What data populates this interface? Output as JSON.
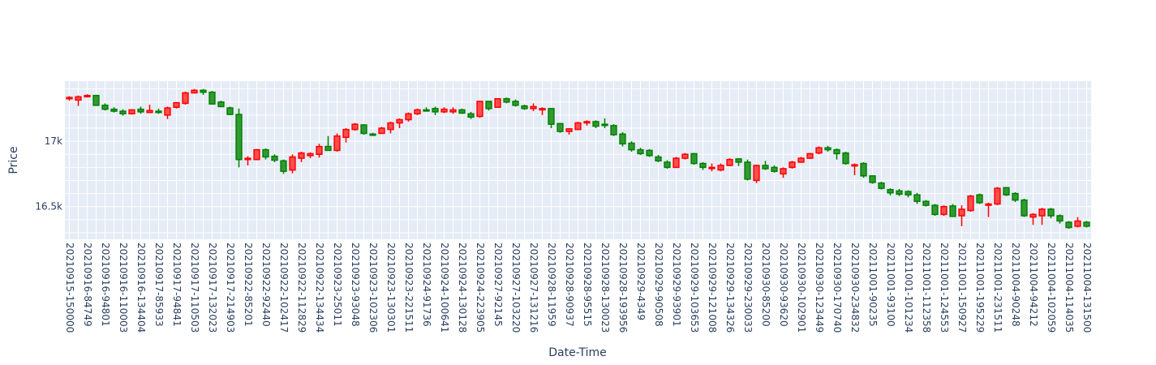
{
  "chart_data": {
    "type": "candlestick",
    "xlabel": "Date-Time",
    "ylabel": "Price",
    "ylim": [
      16250,
      17460
    ],
    "yticks": [
      {
        "value": 17000,
        "label": "17k"
      },
      {
        "value": 16500,
        "label": "16.5k"
      }
    ],
    "colors": {
      "increasing": "#ff0000",
      "decreasing": "#008000",
      "plot_bg": "#e5ecf6",
      "grid": "#ffffff",
      "text": "#2a3f5f"
    },
    "x_tick_labels": [
      "20210915-150000",
      "20210916-84749",
      "20210916-94801",
      "20210916-110003",
      "20210916-134404",
      "20210917-85933",
      "20210917-94841",
      "20210917-110503",
      "20210917-132023",
      "20210917-214903",
      "20210922-85201",
      "20210922-92440",
      "20210922-102417",
      "20210922-112829",
      "20210922-134434",
      "20210923-25011",
      "20210923-93048",
      "20210923-102306",
      "20210923-130301",
      "20210923-221511",
      "20210924-91736",
      "20210924-100641",
      "20210924-130128",
      "20210924-223905",
      "20210927-92145",
      "20210927-103220",
      "20210927-131216",
      "20210928-11959",
      "20210928-90937",
      "20210928-95515",
      "20210928-130023",
      "20210928-193956",
      "20210929-4349",
      "20210929-90508",
      "20210929-93901",
      "20210929-103653",
      "20210929-121008",
      "20210929-134326",
      "20210929-230033",
      "20210930-85200",
      "20210930-93620",
      "20210930-102901",
      "20210930-123449",
      "20210930-170740",
      "20210930-234832",
      "20211001-90235",
      "20211001-93100",
      "20211001-101234",
      "20211001-112358",
      "20211001-124553",
      "20211001-150927",
      "20211001-195229",
      "20211001-231511",
      "20211004-90248",
      "20211004-94212",
      "20211004-102059",
      "20211004-114035",
      "20211004-131500"
    ],
    "candles": [
      {
        "o": 17325,
        "h": 17345,
        "l": 17310,
        "c": 17335
      },
      {
        "o": 17315,
        "h": 17350,
        "l": 17270,
        "c": 17340
      },
      {
        "o": 17340,
        "h": 17360,
        "l": 17335,
        "c": 17350
      },
      {
        "o": 17350,
        "h": 17355,
        "l": 17270,
        "c": 17275
      },
      {
        "o": 17275,
        "h": 17290,
        "l": 17235,
        "c": 17245
      },
      {
        "o": 17245,
        "h": 17260,
        "l": 17220,
        "c": 17230
      },
      {
        "o": 17230,
        "h": 17245,
        "l": 17195,
        "c": 17210
      },
      {
        "o": 17210,
        "h": 17245,
        "l": 17205,
        "c": 17240
      },
      {
        "o": 17245,
        "h": 17265,
        "l": 17210,
        "c": 17225
      },
      {
        "o": 17220,
        "h": 17280,
        "l": 17215,
        "c": 17235
      },
      {
        "o": 17230,
        "h": 17250,
        "l": 17210,
        "c": 17220
      },
      {
        "o": 17200,
        "h": 17265,
        "l": 17170,
        "c": 17255
      },
      {
        "o": 17260,
        "h": 17300,
        "l": 17250,
        "c": 17295
      },
      {
        "o": 17290,
        "h": 17380,
        "l": 17280,
        "c": 17370
      },
      {
        "o": 17370,
        "h": 17400,
        "l": 17365,
        "c": 17390
      },
      {
        "o": 17390,
        "h": 17400,
        "l": 17355,
        "c": 17375
      },
      {
        "o": 17375,
        "h": 17385,
        "l": 17280,
        "c": 17285
      },
      {
        "o": 17300,
        "h": 17310,
        "l": 17260,
        "c": 17265
      },
      {
        "o": 17255,
        "h": 17265,
        "l": 17200,
        "c": 17205
      },
      {
        "o": 17205,
        "h": 17250,
        "l": 16800,
        "c": 16860
      },
      {
        "o": 16860,
        "h": 16885,
        "l": 16815,
        "c": 16870
      },
      {
        "o": 16860,
        "h": 16940,
        "l": 16855,
        "c": 16935
      },
      {
        "o": 16935,
        "h": 16945,
        "l": 16860,
        "c": 16880
      },
      {
        "o": 16885,
        "h": 16900,
        "l": 16840,
        "c": 16855
      },
      {
        "o": 16850,
        "h": 16860,
        "l": 16750,
        "c": 16770
      },
      {
        "o": 16780,
        "h": 16900,
        "l": 16755,
        "c": 16880
      },
      {
        "o": 16870,
        "h": 16920,
        "l": 16840,
        "c": 16910
      },
      {
        "o": 16890,
        "h": 16915,
        "l": 16870,
        "c": 16905
      },
      {
        "o": 16900,
        "h": 16980,
        "l": 16875,
        "c": 16960
      },
      {
        "o": 16960,
        "h": 17040,
        "l": 16930,
        "c": 16930
      },
      {
        "o": 16930,
        "h": 17060,
        "l": 16920,
        "c": 17040
      },
      {
        "o": 17030,
        "h": 17100,
        "l": 16990,
        "c": 17090
      },
      {
        "o": 17090,
        "h": 17140,
        "l": 17080,
        "c": 17130
      },
      {
        "o": 17125,
        "h": 17130,
        "l": 17050,
        "c": 17060
      },
      {
        "o": 17055,
        "h": 17065,
        "l": 17040,
        "c": 17050
      },
      {
        "o": 17060,
        "h": 17110,
        "l": 17055,
        "c": 17100
      },
      {
        "o": 17090,
        "h": 17150,
        "l": 17060,
        "c": 17140
      },
      {
        "o": 17140,
        "h": 17175,
        "l": 17100,
        "c": 17165
      },
      {
        "o": 17165,
        "h": 17220,
        "l": 17150,
        "c": 17210
      },
      {
        "o": 17210,
        "h": 17250,
        "l": 17200,
        "c": 17240
      },
      {
        "o": 17240,
        "h": 17260,
        "l": 17230,
        "c": 17235
      },
      {
        "o": 17250,
        "h": 17265,
        "l": 17200,
        "c": 17225
      },
      {
        "o": 17225,
        "h": 17260,
        "l": 17215,
        "c": 17245
      },
      {
        "o": 17225,
        "h": 17260,
        "l": 17210,
        "c": 17240
      },
      {
        "o": 17240,
        "h": 17250,
        "l": 17210,
        "c": 17215
      },
      {
        "o": 17210,
        "h": 17225,
        "l": 17170,
        "c": 17185
      },
      {
        "o": 17190,
        "h": 17310,
        "l": 17180,
        "c": 17305
      },
      {
        "o": 17305,
        "h": 17310,
        "l": 17235,
        "c": 17250
      },
      {
        "o": 17260,
        "h": 17330,
        "l": 17255,
        "c": 17325
      },
      {
        "o": 17325,
        "h": 17335,
        "l": 17290,
        "c": 17300
      },
      {
        "o": 17305,
        "h": 17320,
        "l": 17265,
        "c": 17275
      },
      {
        "o": 17270,
        "h": 17280,
        "l": 17240,
        "c": 17250
      },
      {
        "o": 17250,
        "h": 17290,
        "l": 17230,
        "c": 17265
      },
      {
        "o": 17240,
        "h": 17260,
        "l": 17200,
        "c": 17250
      },
      {
        "o": 17250,
        "h": 17255,
        "l": 17100,
        "c": 17130
      },
      {
        "o": 17135,
        "h": 17140,
        "l": 17065,
        "c": 17075
      },
      {
        "o": 17075,
        "h": 17100,
        "l": 17050,
        "c": 17095
      },
      {
        "o": 17090,
        "h": 17150,
        "l": 17085,
        "c": 17140
      },
      {
        "o": 17140,
        "h": 17160,
        "l": 17120,
        "c": 17150
      },
      {
        "o": 17150,
        "h": 17160,
        "l": 17100,
        "c": 17115
      },
      {
        "o": 17130,
        "h": 17175,
        "l": 17100,
        "c": 17125
      },
      {
        "o": 17120,
        "h": 17130,
        "l": 17040,
        "c": 17050
      },
      {
        "o": 17055,
        "h": 17070,
        "l": 16960,
        "c": 16980
      },
      {
        "o": 16985,
        "h": 17000,
        "l": 16920,
        "c": 16935
      },
      {
        "o": 16935,
        "h": 16950,
        "l": 16895,
        "c": 16905
      },
      {
        "o": 16930,
        "h": 16940,
        "l": 16880,
        "c": 16890
      },
      {
        "o": 16880,
        "h": 16895,
        "l": 16840,
        "c": 16850
      },
      {
        "o": 16840,
        "h": 16855,
        "l": 16790,
        "c": 16800
      },
      {
        "o": 16800,
        "h": 16880,
        "l": 16795,
        "c": 16870
      },
      {
        "o": 16870,
        "h": 16910,
        "l": 16860,
        "c": 16900
      },
      {
        "o": 16905,
        "h": 16910,
        "l": 16820,
        "c": 16830
      },
      {
        "o": 16830,
        "h": 16840,
        "l": 16780,
        "c": 16800
      },
      {
        "o": 16795,
        "h": 16830,
        "l": 16770,
        "c": 16800
      },
      {
        "o": 16780,
        "h": 16830,
        "l": 16770,
        "c": 16815
      },
      {
        "o": 16815,
        "h": 16870,
        "l": 16810,
        "c": 16860
      },
      {
        "o": 16865,
        "h": 16870,
        "l": 16810,
        "c": 16840
      },
      {
        "o": 16840,
        "h": 16860,
        "l": 16700,
        "c": 16710
      },
      {
        "o": 16700,
        "h": 16820,
        "l": 16680,
        "c": 16815
      },
      {
        "o": 16815,
        "h": 16850,
        "l": 16780,
        "c": 16790
      },
      {
        "o": 16800,
        "h": 16815,
        "l": 16760,
        "c": 16770
      },
      {
        "o": 16750,
        "h": 16800,
        "l": 16720,
        "c": 16790
      },
      {
        "o": 16800,
        "h": 16850,
        "l": 16790,
        "c": 16840
      },
      {
        "o": 16840,
        "h": 16880,
        "l": 16835,
        "c": 16870
      },
      {
        "o": 16870,
        "h": 16910,
        "l": 16865,
        "c": 16905
      },
      {
        "o": 16910,
        "h": 16960,
        "l": 16900,
        "c": 16950
      },
      {
        "o": 16950,
        "h": 16965,
        "l": 16920,
        "c": 16935
      },
      {
        "o": 16935,
        "h": 16945,
        "l": 16860,
        "c": 16905
      },
      {
        "o": 16910,
        "h": 16920,
        "l": 16820,
        "c": 16830
      },
      {
        "o": 16820,
        "h": 16830,
        "l": 16740,
        "c": 16820
      },
      {
        "o": 16830,
        "h": 16840,
        "l": 16720,
        "c": 16735
      },
      {
        "o": 16735,
        "h": 16740,
        "l": 16675,
        "c": 16685
      },
      {
        "o": 16680,
        "h": 16690,
        "l": 16630,
        "c": 16640
      },
      {
        "o": 16630,
        "h": 16640,
        "l": 16585,
        "c": 16605
      },
      {
        "o": 16620,
        "h": 16635,
        "l": 16580,
        "c": 16595
      },
      {
        "o": 16615,
        "h": 16625,
        "l": 16570,
        "c": 16590
      },
      {
        "o": 16590,
        "h": 16605,
        "l": 16520,
        "c": 16540
      },
      {
        "o": 16540,
        "h": 16550,
        "l": 16500,
        "c": 16510
      },
      {
        "o": 16510,
        "h": 16520,
        "l": 16430,
        "c": 16440
      },
      {
        "o": 16440,
        "h": 16510,
        "l": 16430,
        "c": 16500
      },
      {
        "o": 16505,
        "h": 16520,
        "l": 16420,
        "c": 16425
      },
      {
        "o": 16430,
        "h": 16510,
        "l": 16350,
        "c": 16480
      },
      {
        "o": 16470,
        "h": 16590,
        "l": 16460,
        "c": 16580
      },
      {
        "o": 16590,
        "h": 16600,
        "l": 16520,
        "c": 16530
      },
      {
        "o": 16510,
        "h": 16530,
        "l": 16420,
        "c": 16520
      },
      {
        "o": 16520,
        "h": 16650,
        "l": 16510,
        "c": 16640
      },
      {
        "o": 16645,
        "h": 16650,
        "l": 16580,
        "c": 16590
      },
      {
        "o": 16600,
        "h": 16610,
        "l": 16535,
        "c": 16550
      },
      {
        "o": 16550,
        "h": 16560,
        "l": 16420,
        "c": 16430
      },
      {
        "o": 16420,
        "h": 16450,
        "l": 16360,
        "c": 16440
      },
      {
        "o": 16430,
        "h": 16490,
        "l": 16360,
        "c": 16480
      },
      {
        "o": 16480,
        "h": 16490,
        "l": 16410,
        "c": 16430
      },
      {
        "o": 16430,
        "h": 16440,
        "l": 16370,
        "c": 16390
      },
      {
        "o": 16380,
        "h": 16390,
        "l": 16330,
        "c": 16340
      },
      {
        "o": 16350,
        "h": 16420,
        "l": 16340,
        "c": 16390
      },
      {
        "o": 16380,
        "h": 16390,
        "l": 16340,
        "c": 16350
      }
    ]
  }
}
